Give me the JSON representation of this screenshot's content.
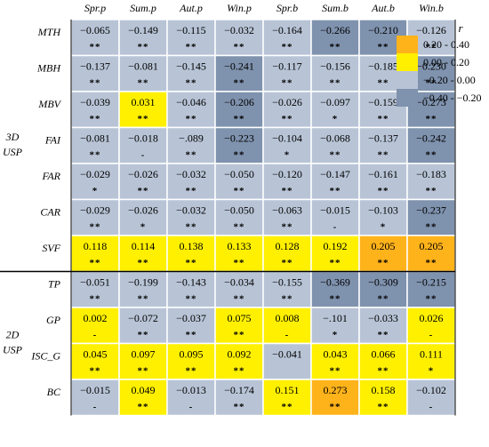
{
  "chart_data": {
    "type": "heatmap",
    "columns": [
      "Spr.p",
      "Sum.p",
      "Aut.p",
      "Win.p",
      "Spr.b",
      "Sum.b",
      "Aut.b",
      "Win.b"
    ],
    "groups": [
      {
        "label_lines": [
          "3D",
          "USP"
        ],
        "rows": [
          {
            "name": "MTH",
            "values": [
              "−0.065",
              "−0.149",
              "−0.115",
              "−0.032",
              "−0.164",
              "−0.266",
              "−0.210",
              "−0.126"
            ],
            "sig": [
              "**",
              "**",
              "**",
              "**",
              "**",
              "**",
              "**",
              "**"
            ]
          },
          {
            "name": "MBH",
            "values": [
              "−0.137",
              "−0.081",
              "−0.145",
              "−0.241",
              "−0.117",
              "−0.156",
              "−0.185",
              "−0.230"
            ],
            "sig": [
              "**",
              "**",
              "**",
              "**",
              "**",
              "**",
              "**",
              "**"
            ]
          },
          {
            "name": "MBV",
            "values": [
              "−0.039",
              "0.031",
              "−0.046",
              "−0.206",
              "−0.026",
              "−0.097",
              "−0.159",
              "−0.273"
            ],
            "sig": [
              "**",
              "**",
              "**",
              "**",
              "**",
              "*",
              "**",
              "**"
            ]
          },
          {
            "name": "FAI",
            "values": [
              "−0.081",
              "−0.018",
              "−.089",
              "−0.223",
              "−0.104",
              "−0.068",
              "−0.137",
              "−0.242"
            ],
            "sig": [
              "**",
              "-",
              "**",
              "**",
              "*",
              "**",
              "**",
              "**"
            ]
          },
          {
            "name": "FAR",
            "values": [
              "−0.029",
              "−0.026",
              "−0.032",
              "−0.050",
              "−0.120",
              "−0.147",
              "−0.161",
              "−0.183"
            ],
            "sig": [
              "*",
              "**",
              "**",
              "**",
              "**",
              "**",
              "**",
              "**"
            ]
          },
          {
            "name": "CAR",
            "values": [
              "−0.029",
              "−0.026",
              "−0.032",
              "−0.050",
              "−0.063",
              "−0.015",
              "−0.103",
              "−0.237"
            ],
            "sig": [
              "**",
              "*",
              "**",
              "**",
              "**",
              "-",
              "*",
              "**"
            ]
          },
          {
            "name": "SVF",
            "values": [
              "0.118",
              "0.114",
              "0.138",
              "0.133",
              "0.128",
              "0.192",
              "0.205",
              "0.205"
            ],
            "sig": [
              "**",
              "**",
              "**",
              "**",
              "**",
              "**",
              "**",
              "**"
            ]
          }
        ]
      },
      {
        "label_lines": [
          "2D",
          "USP"
        ],
        "rows": [
          {
            "name": "TP",
            "values": [
              "−0.051",
              "−0.199",
              "−0.143",
              "−0.034",
              "−0.155",
              "−0.369",
              "−0.309",
              "−0.215"
            ],
            "sig": [
              "**",
              "**",
              "**",
              "**",
              "**",
              "**",
              "**",
              "**"
            ]
          },
          {
            "name": "GP",
            "values": [
              "0.002",
              "−0.072",
              "−0.037",
              "0.075",
              "0.008",
              "−.101",
              "−0.033",
              "0.026"
            ],
            "sig": [
              "-",
              "**",
              "**",
              "**",
              "-",
              "*",
              "**",
              "-"
            ]
          },
          {
            "name": "ISC_G",
            "values": [
              "0.045",
              "0.097",
              "0.095",
              "0.092",
              "−0.041",
              "0.043",
              "0.066",
              "0.111"
            ],
            "sig": [
              "**",
              "**",
              "**",
              "**",
              "",
              "**",
              "**",
              "*"
            ]
          },
          {
            "name": "BC",
            "values": [
              "−0.015",
              "0.049",
              "−0.013",
              "−0.174",
              "0.151",
              "0.273",
              "0.158",
              "−0.102"
            ],
            "sig": [
              "-",
              "**",
              "-",
              "**",
              "**",
              "**",
              "**",
              "-"
            ]
          }
        ]
      }
    ],
    "legend": {
      "title": "r",
      "placement": "top-right",
      "items": [
        {
          "label": "0.20 - 0.40",
          "color": "#FFB31A"
        },
        {
          "label": "0.00 - 0.20",
          "color": "#FFF000"
        },
        {
          "label": "−0.20 - 0.00",
          "color": "#B8C4D6"
        },
        {
          "label": "−0.40 - −0.20",
          "color": "#7F92AE"
        }
      ]
    }
  }
}
